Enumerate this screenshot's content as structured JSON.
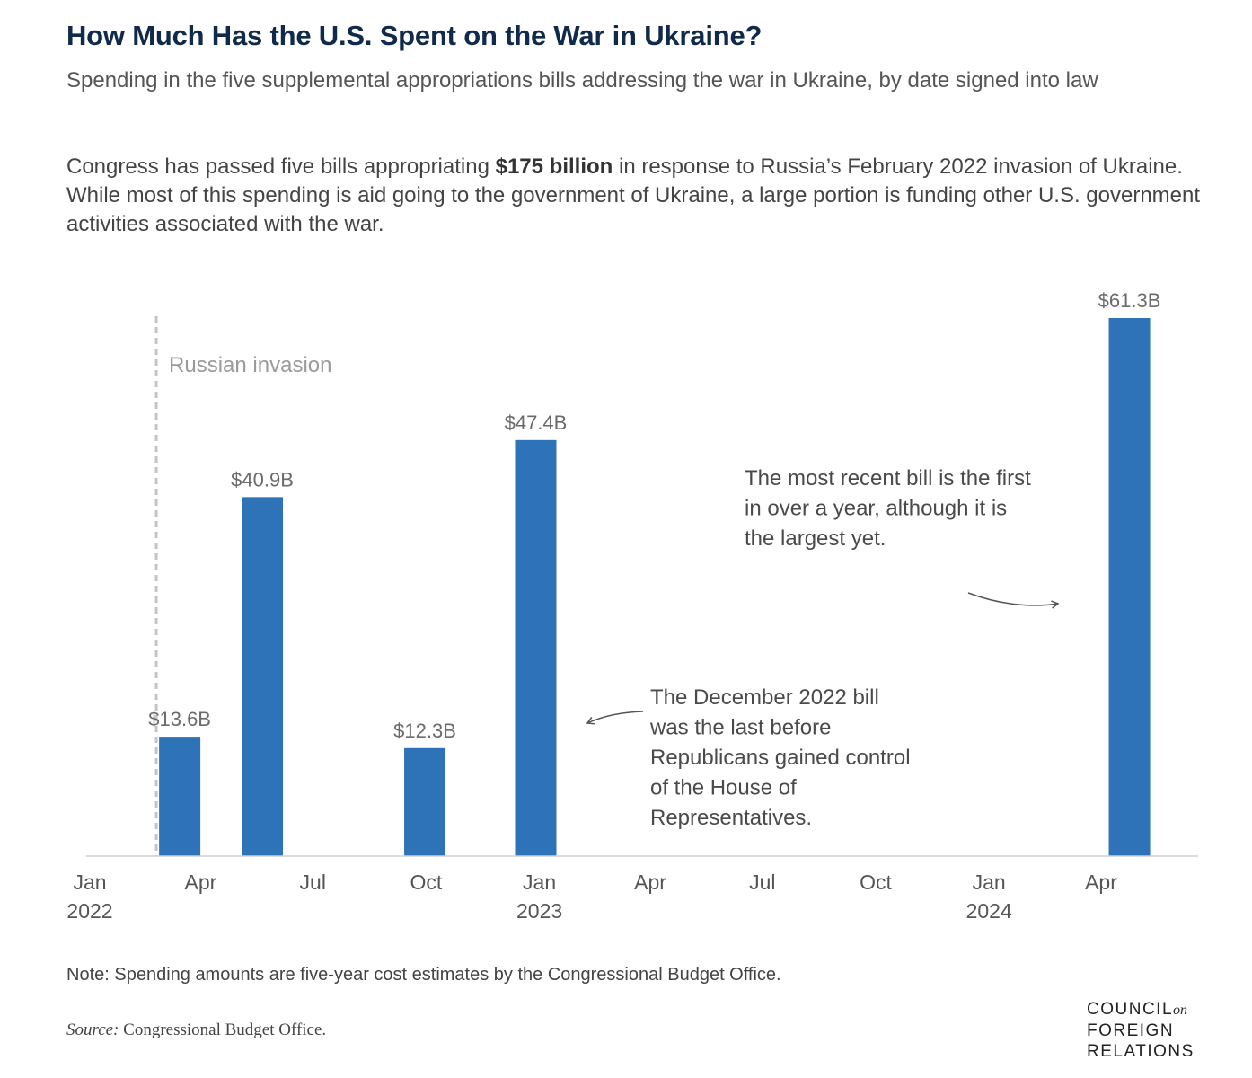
{
  "header": {
    "title": "How Much Has the U.S. Spent on the War in Ukraine?",
    "subtitle": "Spending in the five supplemental appropriations bills addressing the war in Ukraine, by date signed into law",
    "desc_pre": "Congress has passed five bills appropriating ",
    "desc_bold": "$175 billion",
    "desc_post": " in response to Russia’s February 2022 invasion of Ukraine. While most of this spending is aid going to the government of Ukraine, a large portion is funding other U.S. government activities associated with the war."
  },
  "chart_data": {
    "type": "bar",
    "x_axis": {
      "ticks": [
        {
          "date": "2022-01-01",
          "label": "Jan",
          "sublabel": "2022"
        },
        {
          "date": "2022-04-01",
          "label": "Apr",
          "sublabel": ""
        },
        {
          "date": "2022-07-01",
          "label": "Jul",
          "sublabel": ""
        },
        {
          "date": "2022-10-01",
          "label": "Oct",
          "sublabel": ""
        },
        {
          "date": "2023-01-01",
          "label": "Jan",
          "sublabel": "2023"
        },
        {
          "date": "2023-04-01",
          "label": "Apr",
          "sublabel": ""
        },
        {
          "date": "2023-07-01",
          "label": "Jul",
          "sublabel": ""
        },
        {
          "date": "2023-10-01",
          "label": "Oct",
          "sublabel": ""
        },
        {
          "date": "2024-01-01",
          "label": "Jan",
          "sublabel": "2024"
        },
        {
          "date": "2024-04-01",
          "label": "Apr",
          "sublabel": ""
        }
      ],
      "range": [
        "2022-01-01",
        "2024-06-15"
      ]
    },
    "y_axis": {
      "range": [
        0,
        61.3
      ],
      "unit": "B"
    },
    "bars": [
      {
        "date": "2022-03-15",
        "value": 13.6,
        "label": "$13.6B"
      },
      {
        "date": "2022-05-21",
        "value": 40.9,
        "label": "$40.9B"
      },
      {
        "date": "2022-09-30",
        "value": 12.3,
        "label": "$12.3B"
      },
      {
        "date": "2022-12-29",
        "value": 47.4,
        "label": "$47.4B"
      },
      {
        "date": "2024-04-24",
        "value": 61.3,
        "label": "$61.3B"
      }
    ],
    "reference_line": {
      "date": "2022-02-24",
      "label": "Russian invasion"
    },
    "annotations": [
      {
        "text": "The December 2022 bill was the last before Republicans gained control of the House of Representatives."
      },
      {
        "text": "The most recent bill is the first in over a year, although it is the largest yet."
      }
    ],
    "bar_color": "#2e73b8",
    "grid": false
  },
  "footer": {
    "note": "Note: Spending amounts are five-year cost estimates by the Congressional Budget Office.",
    "source_label": "Source:",
    "source_text": " Congressional Budget Office.",
    "logo_line1": "COUNCIL",
    "logo_on": "on",
    "logo_line2": "FOREIGN",
    "logo_line3": "RELATIONS"
  }
}
